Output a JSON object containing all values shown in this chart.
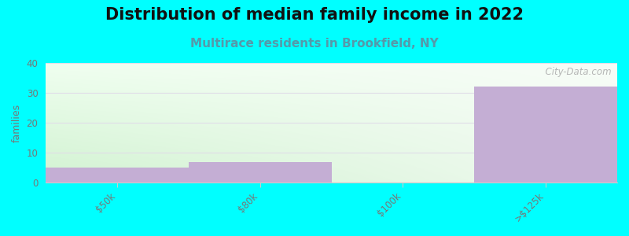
{
  "title": "Distribution of median family income in 2022",
  "subtitle": "Multirace residents in Brookfield, NY",
  "categories": [
    "$50k",
    "$80k",
    "$100k",
    ">$125k"
  ],
  "bin_edges": [
    0,
    1,
    2,
    3,
    4
  ],
  "values": [
    5,
    7,
    0,
    32
  ],
  "bar_color": "#c4aed4",
  "bg_color": "#00ffff",
  "ylabel": "families",
  "ylim": [
    0,
    40
  ],
  "yticks": [
    0,
    10,
    20,
    30,
    40
  ],
  "title_fontsize": 15,
  "subtitle_fontsize": 11,
  "subtitle_color": "#5599aa",
  "watermark": "  City-Data.com",
  "tick_label_color": "#777777",
  "grid_color": "#e0dde8",
  "spine_color": "#cccccc"
}
